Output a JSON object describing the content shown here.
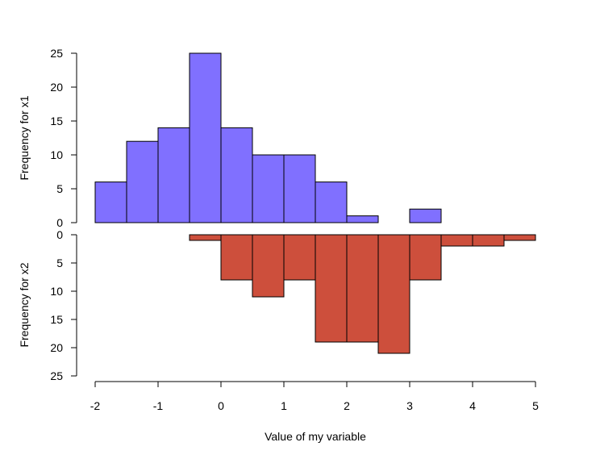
{
  "chart_data": [
    {
      "type": "bar",
      "panel": "top",
      "bin_edges": [
        -2,
        -1.5,
        -1,
        -0.5,
        0,
        0.5,
        1,
        1.5,
        2,
        2.5,
        3,
        3.5
      ],
      "values": [
        6,
        12,
        14,
        25,
        14,
        10,
        10,
        6,
        1,
        0,
        2
      ],
      "ylabel": "Frequency for x1",
      "ylim": [
        0,
        25
      ],
      "yticks": [
        "0",
        "5",
        "10",
        "15",
        "20",
        "25"
      ],
      "color": "#8070ff",
      "direction": "up"
    },
    {
      "type": "bar",
      "panel": "bottom",
      "bin_edges": [
        -0.5,
        0,
        0.5,
        1,
        1.5,
        2,
        2.5,
        3,
        3.5,
        4,
        4.5,
        5
      ],
      "values": [
        1,
        8,
        11,
        8,
        19,
        19,
        21,
        8,
        2,
        2,
        1
      ],
      "ylabel": "Frequency for x2",
      "ylim": [
        0,
        25
      ],
      "yticks": [
        "0",
        "5",
        "10",
        "15",
        "20",
        "25"
      ],
      "color": "#cd4f3c",
      "direction": "down"
    }
  ],
  "x_axis": {
    "label": "Value of my variable",
    "range": [
      -2,
      5
    ],
    "ticks": [
      "-2",
      "-1",
      "0",
      "1",
      "2",
      "3",
      "4",
      "5"
    ]
  }
}
